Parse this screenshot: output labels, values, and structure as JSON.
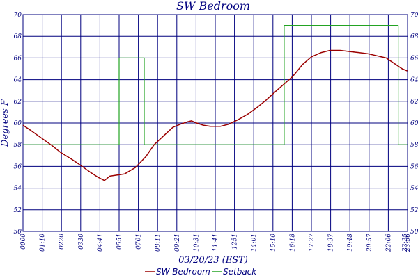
{
  "chart_data": {
    "type": "line",
    "title": "SW Bedroom",
    "ylabel": "Degrees F",
    "xlabel": "03/20/23 (EST)",
    "ylim": [
      50,
      70
    ],
    "yticks": [
      "50",
      "52",
      "54",
      "56",
      "58",
      "60",
      "62",
      "64",
      "66",
      "68",
      "70"
    ],
    "xticks": [
      "0000",
      "01:10",
      "0220",
      "0330",
      "04:41",
      "0551",
      "0701",
      "08:11",
      "09:21",
      "10:31",
      "11:41",
      "1251",
      "14:01",
      "15:10",
      "16:18",
      "17:27",
      "18:37",
      "19:48",
      "20:57",
      "22:06",
      "23:25",
      "23:56"
    ],
    "grid": true,
    "legend_position": "bottom-center",
    "colors": {
      "axis": "#00007f",
      "grid": "#00007f",
      "temp": "#9b0000",
      "setback": "#22a322"
    },
    "series": [
      {
        "name": "SW Bedroom",
        "color": "#9b0000",
        "points": [
          [
            "00:00",
            59.8
          ],
          [
            "00:30",
            59.3
          ],
          [
            "01:10",
            58.6
          ],
          [
            "01:50",
            57.9
          ],
          [
            "02:20",
            57.3
          ],
          [
            "03:00",
            56.7
          ],
          [
            "03:30",
            56.2
          ],
          [
            "04:10",
            55.5
          ],
          [
            "04:41",
            55.0
          ],
          [
            "05:05",
            54.7
          ],
          [
            "05:25",
            55.1
          ],
          [
            "05:51",
            55.2
          ],
          [
            "06:20",
            55.3
          ],
          [
            "07:01",
            55.9
          ],
          [
            "07:40",
            56.9
          ],
          [
            "08:11",
            58.0
          ],
          [
            "08:50",
            58.9
          ],
          [
            "09:21",
            59.6
          ],
          [
            "09:50",
            59.9
          ],
          [
            "10:15",
            60.1
          ],
          [
            "10:31",
            60.2
          ],
          [
            "10:50",
            60.0
          ],
          [
            "11:15",
            59.8
          ],
          [
            "11:41",
            59.7
          ],
          [
            "12:20",
            59.7
          ],
          [
            "12:51",
            59.9
          ],
          [
            "13:25",
            60.3
          ],
          [
            "14:01",
            60.8
          ],
          [
            "14:40",
            61.5
          ],
          [
            "15:10",
            62.1
          ],
          [
            "15:45",
            62.9
          ],
          [
            "16:18",
            63.6
          ],
          [
            "16:50",
            64.3
          ],
          [
            "17:27",
            65.4
          ],
          [
            "18:00",
            66.1
          ],
          [
            "18:37",
            66.5
          ],
          [
            "19:10",
            66.7
          ],
          [
            "19:48",
            66.7
          ],
          [
            "20:20",
            66.6
          ],
          [
            "20:57",
            66.5
          ],
          [
            "21:30",
            66.4
          ],
          [
            "22:06",
            66.2
          ],
          [
            "22:40",
            66.0
          ],
          [
            "23:10",
            65.5
          ],
          [
            "23:40",
            65.0
          ],
          [
            "23:59",
            64.8
          ]
        ]
      },
      {
        "name": "Setback",
        "color": "#22a322",
        "points": [
          [
            "00:00",
            58.0
          ],
          [
            "06:00",
            58.0
          ],
          [
            "06:00",
            66.0
          ],
          [
            "07:34",
            66.0
          ],
          [
            "07:34",
            58.0
          ],
          [
            "16:18",
            58.0
          ],
          [
            "16:18",
            69.0
          ],
          [
            "23:25",
            69.0
          ],
          [
            "23:25",
            58.0
          ],
          [
            "23:59",
            58.0
          ]
        ]
      }
    ]
  }
}
